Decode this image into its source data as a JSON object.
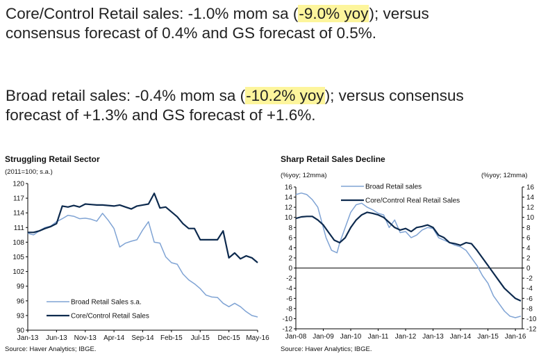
{
  "headlines": {
    "core": {
      "pre": "Core/Control Retail sales: -1.0% mom sa (",
      "highlight": "-9.0% yoy",
      "post": "); versus",
      "line2": "consensus forecast of 0.4% and GS forecast of 0.5%."
    },
    "broad": {
      "pre": "Broad retail sales: -0.4% mom sa (",
      "highlight": "-10.2% yoy",
      "post": "); versus consensus",
      "line2": "forecast of +1.3% and GS forecast of +1.6%."
    },
    "highlight_color": "#fdf59c"
  },
  "chart_data": [
    {
      "type": "line",
      "title": "Struggling Retail Sector",
      "ylabel": "(2011=100;  s.a.)",
      "ylim": [
        90,
        120
      ],
      "yticks": [
        90,
        93,
        96,
        99,
        102,
        105,
        108,
        111,
        114,
        117,
        120
      ],
      "xlim": [
        0,
        40
      ],
      "xticks": [
        {
          "label": "Jan-13",
          "x": 0
        },
        {
          "label": "Jun-13",
          "x": 5
        },
        {
          "label": "Nov-13",
          "x": 10
        },
        {
          "label": "Apr-14",
          "x": 15
        },
        {
          "label": "Sep-14",
          "x": 20
        },
        {
          "label": "Feb-15",
          "x": 25
        },
        {
          "label": "Jul-15",
          "x": 30
        },
        {
          "label": "Dec-15",
          "x": 35
        },
        {
          "label": "May-16",
          "x": 40
        }
      ],
      "grid": false,
      "legend": "bottom-left",
      "series": [
        {
          "name": "Broad Retail Sales s.a.",
          "color": "#7fa3d4",
          "width": 1.5,
          "values": [
            109.8,
            109.5,
            110.3,
            111.0,
            111.3,
            112.2,
            112.8,
            113.5,
            113.3,
            112.8,
            112.9,
            112.7,
            112.3,
            113.9,
            112.5,
            110.8,
            107.0,
            107.8,
            108.2,
            108.5,
            110.5,
            112.2,
            108.0,
            107.8,
            105.0,
            103.8,
            103.5,
            101.5,
            100.3,
            99.5,
            98.5,
            97.2,
            96.8,
            96.7,
            95.5,
            94.8,
            95.5,
            94.8,
            93.8,
            93.0,
            92.7
          ]
        },
        {
          "name": "Core/Control Retail Sales",
          "color": "#0d2a4e",
          "width": 2.2,
          "values": [
            110.0,
            110.0,
            110.3,
            110.8,
            111.2,
            111.8,
            115.4,
            115.2,
            115.5,
            115.2,
            115.8,
            115.7,
            115.6,
            115.6,
            115.5,
            115.4,
            115.6,
            115.2,
            114.8,
            115.4,
            115.6,
            115.8,
            118.0,
            115.0,
            115.2,
            114.2,
            113.2,
            111.8,
            110.8,
            110.8,
            108.5,
            108.5,
            108.5,
            108.5,
            110.3,
            104.8,
            105.8,
            104.6,
            105.2,
            104.8,
            103.8
          ]
        }
      ],
      "source": "Source: Haver Analytics; IBGE."
    },
    {
      "type": "line",
      "title": "Sharp Retail Sales Decline",
      "ylabel_left": "(%yoy; 12mma)",
      "ylabel_right": "(%yoy; 12mma)",
      "ylim": [
        -12,
        16
      ],
      "yticks": [
        -12,
        -10,
        -8,
        -6,
        -4,
        -2,
        0,
        2,
        4,
        6,
        8,
        10,
        12,
        14,
        16
      ],
      "yticks_right": [
        -12,
        -10,
        -8,
        -6,
        -4,
        -2,
        0,
        2,
        4,
        6,
        8,
        10,
        12,
        14,
        16
      ],
      "xlim": [
        0,
        8.25
      ],
      "xticks": [
        {
          "label": "Jan-08",
          "x": 0
        },
        {
          "label": "Jan-09",
          "x": 1
        },
        {
          "label": "Jan-10",
          "x": 2
        },
        {
          "label": "Jan-11",
          "x": 3
        },
        {
          "label": "Jan-12",
          "x": 4
        },
        {
          "label": "Jan-13",
          "x": 5
        },
        {
          "label": "Jan-14",
          "x": 6
        },
        {
          "label": "Jan-15",
          "x": 7
        },
        {
          "label": "Jan-16",
          "x": 8
        }
      ],
      "grid": false,
      "legend": "top-center",
      "series": [
        {
          "name": "Broad Retail sales",
          "color": "#7fa3d4",
          "width": 1.5,
          "x": [
            0,
            0.2,
            0.4,
            0.6,
            0.8,
            1.0,
            1.1,
            1.3,
            1.5,
            1.6,
            1.8,
            2.0,
            2.2,
            2.4,
            2.6,
            2.8,
            3.0,
            3.2,
            3.4,
            3.6,
            3.8,
            4.0,
            4.2,
            4.4,
            4.6,
            4.8,
            5.0,
            5.2,
            5.4,
            5.6,
            5.8,
            6.0,
            6.2,
            6.4,
            6.6,
            6.8,
            7.0,
            7.2,
            7.4,
            7.6,
            7.8,
            8.0,
            8.2
          ],
          "y": [
            14.5,
            14.8,
            14.5,
            13.5,
            12.0,
            8.0,
            6.0,
            3.5,
            3.0,
            5.0,
            8.0,
            11.0,
            12.5,
            12.8,
            12.0,
            11.5,
            10.8,
            10.5,
            8.0,
            9.5,
            7.0,
            7.2,
            6.0,
            6.5,
            7.5,
            8.0,
            7.8,
            6.0,
            5.5,
            5.0,
            4.5,
            4.2,
            3.5,
            2.0,
            0.5,
            -1.5,
            -3.0,
            -5.5,
            -7.0,
            -8.5,
            -9.5,
            -9.8,
            -9.5
          ]
        },
        {
          "name": "Core/Control Real Retail Sales",
          "color": "#0d2a4e",
          "width": 2.2,
          "x": [
            0,
            0.2,
            0.4,
            0.6,
            0.8,
            1.0,
            1.2,
            1.4,
            1.6,
            1.8,
            2.0,
            2.2,
            2.4,
            2.6,
            2.8,
            3.0,
            3.2,
            3.4,
            3.6,
            3.8,
            4.0,
            4.2,
            4.4,
            4.6,
            4.8,
            5.0,
            5.2,
            5.4,
            5.6,
            5.8,
            6.0,
            6.2,
            6.4,
            6.6,
            6.8,
            7.0,
            7.2,
            7.4,
            7.6,
            7.8,
            8.0,
            8.2
          ],
          "y": [
            9.8,
            10.1,
            10.2,
            10.2,
            9.5,
            8.5,
            7.0,
            5.5,
            5.0,
            6.0,
            8.0,
            9.5,
            10.5,
            11.0,
            10.8,
            10.5,
            10.0,
            9.0,
            8.0,
            7.5,
            7.8,
            7.2,
            8.0,
            8.2,
            8.5,
            8.0,
            6.5,
            6.0,
            5.0,
            4.8,
            4.5,
            5.0,
            4.8,
            3.5,
            2.0,
            0.5,
            -1.0,
            -2.5,
            -4.0,
            -5.0,
            -6.0,
            -6.5
          ]
        }
      ],
      "source": "Source: Haver Analytics; IBGE."
    }
  ]
}
